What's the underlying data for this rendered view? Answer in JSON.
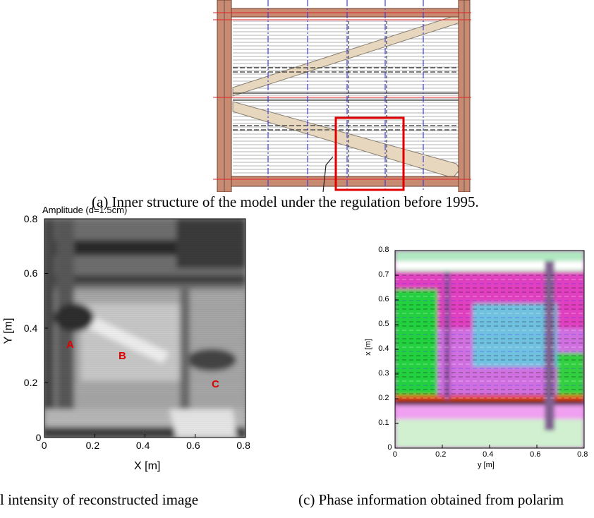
{
  "figure_a": {
    "caption": "(a)   Inner structure of the model under the regulation before 1995."
  },
  "figure_b": {
    "title": "Amplitude (d=1.5cm)",
    "xlabel": "X [m]",
    "ylabel": "Y [m]",
    "x_ticks": [
      "0",
      "0.2",
      "0.4",
      "0.6",
      "0.8"
    ],
    "y_ticks": [
      "0",
      "0.2",
      "0.4",
      "0.6",
      "0.8"
    ],
    "markers": [
      "A",
      "B",
      "C"
    ],
    "caption": "l intensity of reconstructed image"
  },
  "figure_c": {
    "xlabel": "y [m]",
    "ylabel": "x [m]",
    "x_ticks": [
      "0",
      "0.2",
      "0.4",
      "0.6",
      "0.8"
    ],
    "y_ticks": [
      "0",
      "0.1",
      "0.2",
      "0.3",
      "0.4",
      "0.5",
      "0.6",
      "0.7",
      "0.8"
    ],
    "caption": "(c) Phase information obtained from polarim"
  },
  "colors": {
    "wood": "#e6d7be",
    "post": "#c98a72",
    "red_line": "#e0252a",
    "blue_line": "#3e3ede",
    "highlight_box": "#e00000"
  }
}
